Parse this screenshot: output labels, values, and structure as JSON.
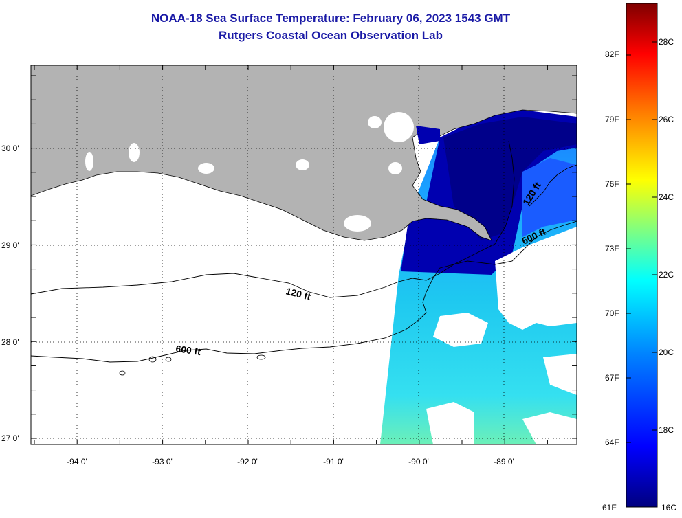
{
  "header": {
    "title": "NOAA-18 Sea Surface Temperature:  February 06, 2023 1543 GMT",
    "subtitle": "Rutgers Coastal Ocean Observation Lab"
  },
  "map": {
    "lat_labels": [
      "30 0'",
      "29 0'",
      "28 0'",
      "27 0'"
    ],
    "lon_labels": [
      "-94 0'",
      "-93 0'",
      "-92 0'",
      "-91 0'",
      "-90 0'",
      "-89 0'"
    ],
    "contours": [
      {
        "label": "120 ft"
      },
      {
        "label": "600 ft"
      },
      {
        "label": "120 ft"
      },
      {
        "label": "600 ft"
      }
    ],
    "colors": {
      "land": "#b3b3b3",
      "no_data": "#ffffff",
      "grid_dots": "#000000"
    }
  },
  "colorbar": {
    "f_labels": [
      "82F",
      "79F",
      "76F",
      "73F",
      "70F",
      "67F",
      "64F",
      "61F"
    ],
    "c_labels": [
      "28C",
      "26C",
      "24C",
      "22C",
      "20C",
      "18C",
      "16C"
    ],
    "colors": [
      "#00007f",
      "#0000ff",
      "#0080ff",
      "#00ffff",
      "#80ff80",
      "#ffff00",
      "#ff8000",
      "#ff0000",
      "#7f0000"
    ]
  }
}
